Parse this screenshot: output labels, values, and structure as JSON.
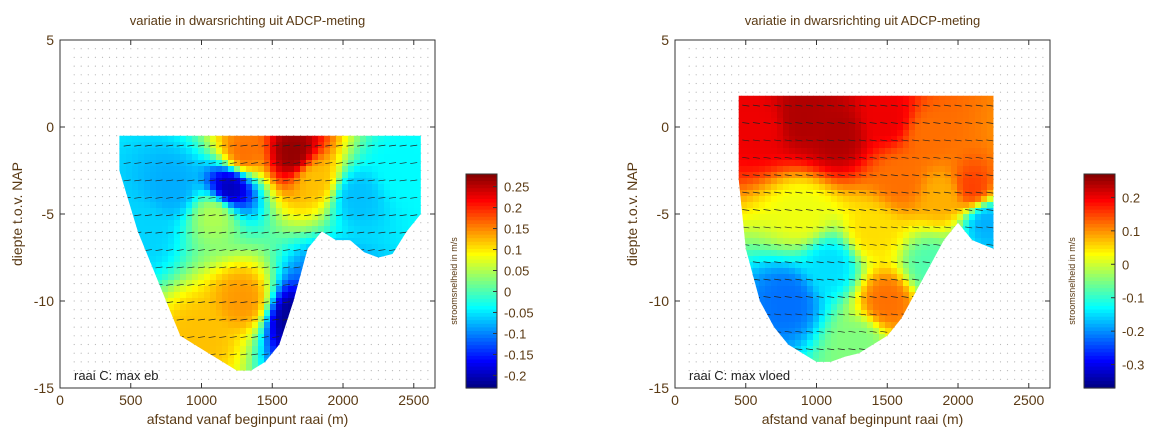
{
  "chart_data": [
    {
      "type": "heatmap",
      "title": "variatie in dwarsrichting uit ADCP-meting",
      "xlabel": "afstand vanaf beginpunt raai (m)",
      "ylabel": "diepte t.o.v. NAP",
      "xlim": [
        0,
        2650
      ],
      "ylim": [
        -15,
        5
      ],
      "xticks": [
        "0",
        "500",
        "1000",
        "1500",
        "2000",
        "2500"
      ],
      "yticks": [
        "5",
        "0",
        "-5",
        "-10",
        "-15"
      ],
      "annotation": "raai C: max eb",
      "colorbar": {
        "label": "stroomsnelheid in m/s",
        "range": [
          -0.23,
          0.28
        ],
        "ticks": [
          0.25,
          0.2,
          0.15,
          0.1,
          0.05,
          0,
          -0.05,
          -0.1,
          -0.15,
          -0.2
        ],
        "tick_labels": [
          "0.25",
          "0.2",
          "0.15",
          "0.1",
          "0.05",
          "0",
          "-0.05",
          "-0.1",
          "-0.15",
          "-0.2"
        ]
      },
      "data_top": -0.5,
      "bed_profile": [
        [
          420,
          -2.5
        ],
        [
          550,
          -6
        ],
        [
          650,
          -8
        ],
        [
          750,
          -10
        ],
        [
          850,
          -12
        ],
        [
          950,
          -12.5
        ],
        [
          1050,
          -13
        ],
        [
          1150,
          -13.5
        ],
        [
          1250,
          -14
        ],
        [
          1350,
          -14
        ],
        [
          1450,
          -13.5
        ],
        [
          1550,
          -12.5
        ],
        [
          1650,
          -10
        ],
        [
          1750,
          -7
        ],
        [
          1850,
          -6
        ],
        [
          1950,
          -6.5
        ],
        [
          2050,
          -6.5
        ],
        [
          2150,
          -7.2
        ],
        [
          2250,
          -7.5
        ],
        [
          2350,
          -7.3
        ],
        [
          2450,
          -6
        ],
        [
          2550,
          -5
        ],
        [
          2550,
          -0.5
        ]
      ],
      "zones": [
        {
          "x": 1650,
          "y": -1.5,
          "value": 0.27
        },
        {
          "x": 1800,
          "y": -3,
          "value": 0.12
        },
        {
          "x": 1300,
          "y": -1.5,
          "value": 0.16
        },
        {
          "x": 1100,
          "y": -5,
          "value": 0.05
        },
        {
          "x": 1300,
          "y": -10,
          "value": 0.14
        },
        {
          "x": 1000,
          "y": -12,
          "value": 0.12
        },
        {
          "x": 1200,
          "y": -3.5,
          "value": -0.2
        },
        {
          "x": 1650,
          "y": -11,
          "value": -0.22
        },
        {
          "x": 800,
          "y": -3.5,
          "value": -0.08
        },
        {
          "x": 600,
          "y": -6,
          "value": -0.06
        },
        {
          "x": 2100,
          "y": -4,
          "value": -0.07
        },
        {
          "x": 2400,
          "y": -2.5,
          "value": -0.04
        },
        {
          "x": 1900,
          "y": -9,
          "value": -0.1
        }
      ]
    },
    {
      "type": "heatmap",
      "title": "variatie in dwarsrichting uit ADCP-meting",
      "xlabel": "afstand vanaf beginpunt raai (m)",
      "ylabel": "diepte t.o.v. NAP",
      "xlim": [
        0,
        2650
      ],
      "ylim": [
        -15,
        5
      ],
      "xticks": [
        "0",
        "500",
        "1000",
        "1500",
        "2000",
        "2500"
      ],
      "yticks": [
        "5",
        "0",
        "-5",
        "-10",
        "-15"
      ],
      "annotation": "raai C: max vloed",
      "colorbar": {
        "label": "stroomsnelheid in m/s",
        "range": [
          -0.37,
          0.27
        ],
        "ticks": [
          0.2,
          0.1,
          0,
          -0.1,
          -0.2,
          -0.3
        ],
        "tick_labels": [
          "0.2",
          "0.1",
          "0",
          "-0.1",
          "-0.2",
          "-0.3"
        ]
      },
      "data_top": 1.8,
      "bed_profile": [
        [
          450,
          -3
        ],
        [
          500,
          -7
        ],
        [
          600,
          -10
        ],
        [
          700,
          -11.5
        ],
        [
          800,
          -12.5
        ],
        [
          900,
          -13
        ],
        [
          1000,
          -13.5
        ],
        [
          1100,
          -13.5
        ],
        [
          1200,
          -13.2
        ],
        [
          1300,
          -13
        ],
        [
          1400,
          -12.5
        ],
        [
          1500,
          -12
        ],
        [
          1600,
          -11
        ],
        [
          1700,
          -9.5
        ],
        [
          1800,
          -8
        ],
        [
          1900,
          -6.5
        ],
        [
          2000,
          -5.5
        ],
        [
          2100,
          -6.5
        ],
        [
          2250,
          -7
        ],
        [
          2250,
          1.8
        ]
      ],
      "zones": [
        {
          "x": 900,
          "y": 0.5,
          "value": 0.24
        },
        {
          "x": 1150,
          "y": -0.5,
          "value": 0.24
        },
        {
          "x": 600,
          "y": 0,
          "value": 0.2
        },
        {
          "x": 1500,
          "y": 0.5,
          "value": 0.2
        },
        {
          "x": 1800,
          "y": -0.5,
          "value": 0.12
        },
        {
          "x": 2100,
          "y": -3.5,
          "value": 0.15
        },
        {
          "x": 1400,
          "y": -6,
          "value": 0.05
        },
        {
          "x": 900,
          "y": -5,
          "value": 0.02
        },
        {
          "x": 1600,
          "y": -3,
          "value": 0.12
        },
        {
          "x": 1100,
          "y": -8,
          "value": -0.15
        },
        {
          "x": 800,
          "y": -10,
          "value": -0.22
        },
        {
          "x": 1500,
          "y": -10,
          "value": 0.12
        },
        {
          "x": 1300,
          "y": -12.5,
          "value": -0.05
        },
        {
          "x": 1800,
          "y": -8,
          "value": -0.08
        },
        {
          "x": 2200,
          "y": -5.5,
          "value": -0.18
        },
        {
          "x": 1900,
          "y": -4,
          "value": 0.08
        }
      ]
    }
  ]
}
